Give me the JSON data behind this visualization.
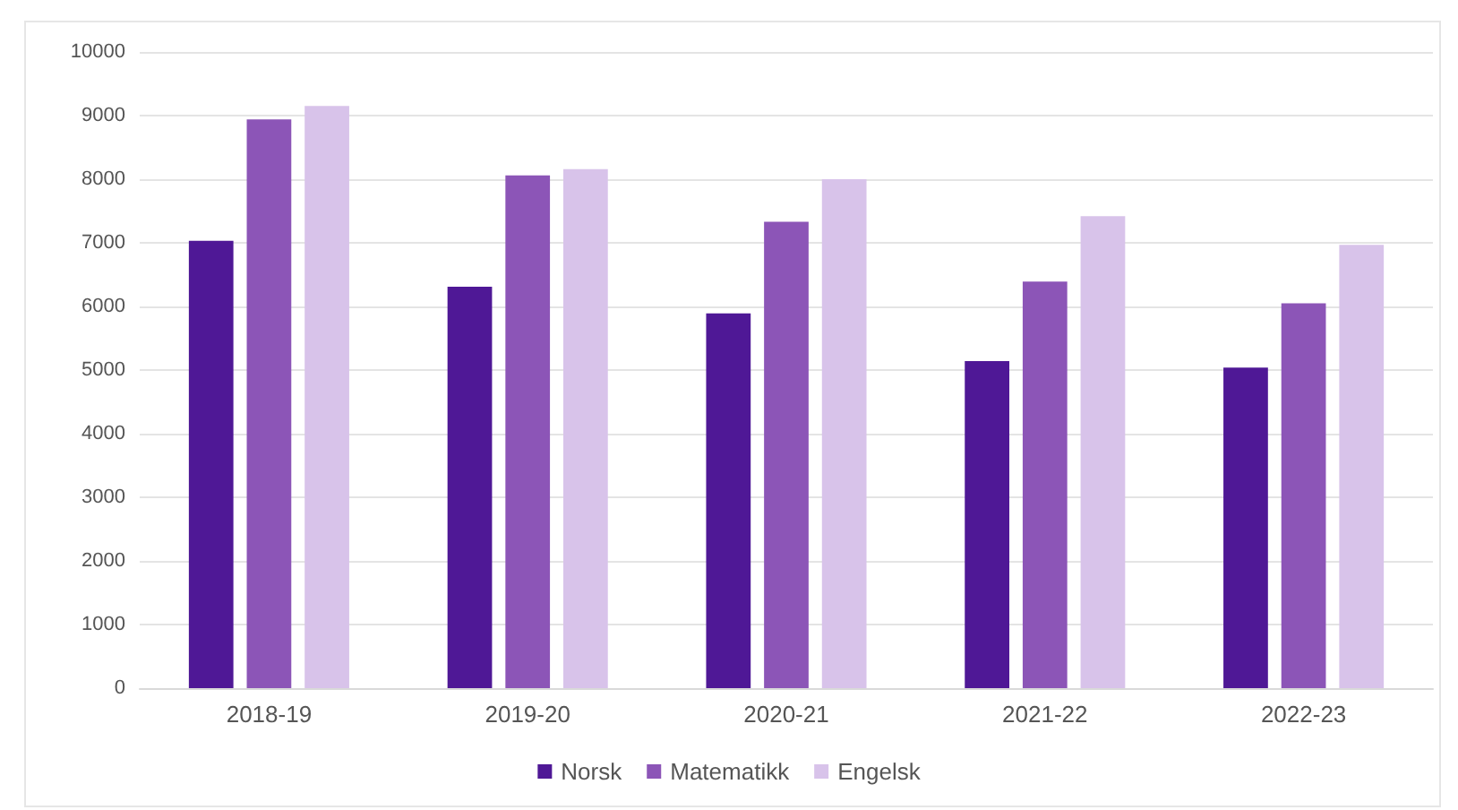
{
  "chart_data": {
    "type": "bar",
    "categories": [
      "2018-19",
      "2019-20",
      "2020-21",
      "2021-22",
      "2022-23"
    ],
    "series": [
      {
        "name": "Norsk",
        "color": "#4f1896",
        "values": [
          7030,
          6310,
          5890,
          5140,
          5040
        ]
      },
      {
        "name": "Matematikk",
        "color": "#8c55b7",
        "values": [
          8940,
          8060,
          7330,
          6390,
          6050
        ]
      },
      {
        "name": "Engelsk",
        "color": "#d8c3ea",
        "values": [
          9150,
          8160,
          8000,
          7420,
          6970
        ]
      }
    ],
    "ylim": [
      0,
      10000
    ],
    "yticks": [
      0,
      1000,
      2000,
      3000,
      4000,
      5000,
      6000,
      7000,
      8000,
      9000,
      10000
    ],
    "grid": "y",
    "legend": "bottom"
  }
}
